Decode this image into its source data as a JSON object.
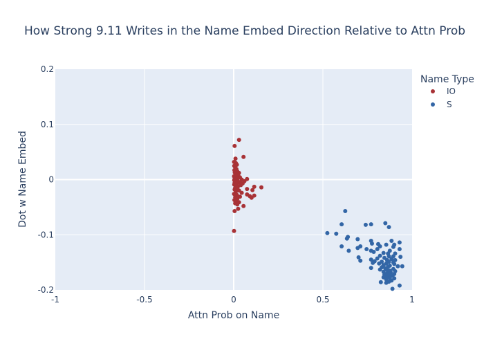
{
  "chart_data": {
    "type": "scatter",
    "title": "How Strong 9.11 Writes in the Name Embed Direction Relative to Attn Prob",
    "xlabel": "Attn Prob on Name",
    "ylabel": "Dot w Name Embed",
    "xlim": [
      -1,
      1
    ],
    "ylim": [
      -0.2,
      0.2
    ],
    "xticks": [
      -1,
      -0.5,
      0,
      0.5,
      1
    ],
    "xtick_labels": [
      "-1",
      "-0.5",
      "0",
      "0.5",
      "1"
    ],
    "yticks": [
      -0.2,
      -0.1,
      0,
      0.1,
      0.2
    ],
    "ytick_labels": [
      "-0.2",
      "-0.1",
      "0",
      "0.1",
      "0.2"
    ],
    "grid": true,
    "legend_title": "Name Type",
    "legend_position": "top-right",
    "colors": {
      "plot_bg": "#e5ecf6",
      "grid": "#ffffff",
      "text": "#2a3f5f"
    },
    "series": [
      {
        "name": "IO",
        "color": "#a83236",
        "points": [
          [
            0.03,
            0.072
          ],
          [
            0.005,
            0.061
          ],
          [
            0.055,
            0.041
          ],
          [
            0.01,
            0.038
          ],
          [
            0.002,
            0.032
          ],
          [
            0.012,
            0.03
          ],
          [
            0.018,
            0.027
          ],
          [
            0.003,
            0.025
          ],
          [
            0.008,
            0.022
          ],
          [
            0.015,
            0.019
          ],
          [
            0.004,
            0.017
          ],
          [
            0.02,
            0.015
          ],
          [
            0.006,
            0.013
          ],
          [
            0.03,
            0.012
          ],
          [
            0.01,
            0.01
          ],
          [
            0.025,
            0.008
          ],
          [
            0.002,
            0.006
          ],
          [
            0.012,
            0.005
          ],
          [
            0.035,
            0.004
          ],
          [
            0.008,
            0.003
          ],
          [
            0.018,
            0.002
          ],
          [
            0.005,
            0.001
          ],
          [
            0.075,
            0.001
          ],
          [
            0.045,
            0.0
          ],
          [
            0.015,
            0.0
          ],
          [
            0.003,
            -0.001
          ],
          [
            0.022,
            -0.002
          ],
          [
            0.06,
            -0.003
          ],
          [
            0.01,
            -0.004
          ],
          [
            0.035,
            -0.005
          ],
          [
            0.005,
            -0.006
          ],
          [
            0.05,
            -0.007
          ],
          [
            0.017,
            -0.008
          ],
          [
            0.003,
            -0.009
          ],
          [
            0.04,
            -0.01
          ],
          [
            0.012,
            -0.011
          ],
          [
            0.025,
            -0.012
          ],
          [
            0.115,
            -0.013
          ],
          [
            0.155,
            -0.014
          ],
          [
            0.008,
            -0.015
          ],
          [
            0.02,
            -0.016
          ],
          [
            0.075,
            -0.017
          ],
          [
            0.005,
            -0.018
          ],
          [
            0.105,
            -0.019
          ],
          [
            0.03,
            -0.02
          ],
          [
            0.012,
            -0.022
          ],
          [
            0.045,
            -0.024
          ],
          [
            0.002,
            -0.026
          ],
          [
            0.075,
            -0.027
          ],
          [
            0.018,
            -0.028
          ],
          [
            0.115,
            -0.029
          ],
          [
            0.09,
            -0.03
          ],
          [
            0.035,
            -0.031
          ],
          [
            0.008,
            -0.032
          ],
          [
            0.1,
            -0.033
          ],
          [
            0.02,
            -0.035
          ],
          [
            0.004,
            -0.037
          ],
          [
            0.012,
            -0.039
          ],
          [
            0.03,
            -0.041
          ],
          [
            0.008,
            -0.043
          ],
          [
            0.02,
            -0.045
          ],
          [
            0.055,
            -0.048
          ],
          [
            0.025,
            -0.053
          ],
          [
            0.005,
            -0.057
          ],
          [
            0.002,
            -0.093
          ]
        ]
      },
      {
        "name": "S",
        "color": "#3366a6",
        "points": [
          [
            0.625,
            -0.057
          ],
          [
            0.85,
            -0.079
          ],
          [
            0.605,
            -0.081
          ],
          [
            0.74,
            -0.082
          ],
          [
            0.77,
            -0.081
          ],
          [
            0.87,
            -0.086
          ],
          [
            0.525,
            -0.097
          ],
          [
            0.575,
            -0.098
          ],
          [
            0.64,
            -0.104
          ],
          [
            0.695,
            -0.108
          ],
          [
            0.635,
            -0.107
          ],
          [
            0.77,
            -0.111
          ],
          [
            0.885,
            -0.111
          ],
          [
            0.93,
            -0.114
          ],
          [
            0.775,
            -0.116
          ],
          [
            0.81,
            -0.117
          ],
          [
            0.855,
            -0.118
          ],
          [
            0.9,
            -0.118
          ],
          [
            0.605,
            -0.121
          ],
          [
            0.71,
            -0.121
          ],
          [
            0.82,
            -0.121
          ],
          [
            0.895,
            -0.122
          ],
          [
            0.695,
            -0.124
          ],
          [
            0.745,
            -0.126
          ],
          [
            0.805,
            -0.126
          ],
          [
            0.93,
            -0.126
          ],
          [
            0.645,
            -0.129
          ],
          [
            0.77,
            -0.129
          ],
          [
            0.875,
            -0.129
          ],
          [
            0.785,
            -0.131
          ],
          [
            0.84,
            -0.133
          ],
          [
            0.865,
            -0.134
          ],
          [
            0.905,
            -0.134
          ],
          [
            0.82,
            -0.138
          ],
          [
            0.87,
            -0.139
          ],
          [
            0.895,
            -0.139
          ],
          [
            0.935,
            -0.14
          ],
          [
            0.7,
            -0.141
          ],
          [
            0.845,
            -0.142
          ],
          [
            0.805,
            -0.143
          ],
          [
            0.885,
            -0.144
          ],
          [
            0.77,
            -0.145
          ],
          [
            0.86,
            -0.146
          ],
          [
            0.905,
            -0.146
          ],
          [
            0.71,
            -0.147
          ],
          [
            0.79,
            -0.148
          ],
          [
            0.83,
            -0.149
          ],
          [
            0.87,
            -0.149
          ],
          [
            0.895,
            -0.15
          ],
          [
            0.78,
            -0.151
          ],
          [
            0.815,
            -0.152
          ],
          [
            0.855,
            -0.152
          ],
          [
            0.9,
            -0.153
          ],
          [
            0.84,
            -0.155
          ],
          [
            0.875,
            -0.156
          ],
          [
            0.92,
            -0.157
          ],
          [
            0.945,
            -0.157
          ],
          [
            0.865,
            -0.158
          ],
          [
            0.83,
            -0.159
          ],
          [
            0.77,
            -0.16
          ],
          [
            0.85,
            -0.161
          ],
          [
            0.895,
            -0.162
          ],
          [
            0.82,
            -0.163
          ],
          [
            0.86,
            -0.164
          ],
          [
            0.875,
            -0.165
          ],
          [
            0.905,
            -0.166
          ],
          [
            0.84,
            -0.167
          ],
          [
            0.88,
            -0.168
          ],
          [
            0.86,
            -0.17
          ],
          [
            0.9,
            -0.171
          ],
          [
            0.845,
            -0.172
          ],
          [
            0.87,
            -0.173
          ],
          [
            0.89,
            -0.174
          ],
          [
            0.86,
            -0.176
          ],
          [
            0.84,
            -0.177
          ],
          [
            0.875,
            -0.178
          ],
          [
            0.9,
            -0.179
          ],
          [
            0.855,
            -0.181
          ],
          [
            0.885,
            -0.183
          ],
          [
            0.87,
            -0.185
          ],
          [
            0.825,
            -0.186
          ],
          [
            0.855,
            -0.187
          ],
          [
            0.93,
            -0.192
          ],
          [
            0.89,
            -0.198
          ]
        ]
      }
    ]
  }
}
